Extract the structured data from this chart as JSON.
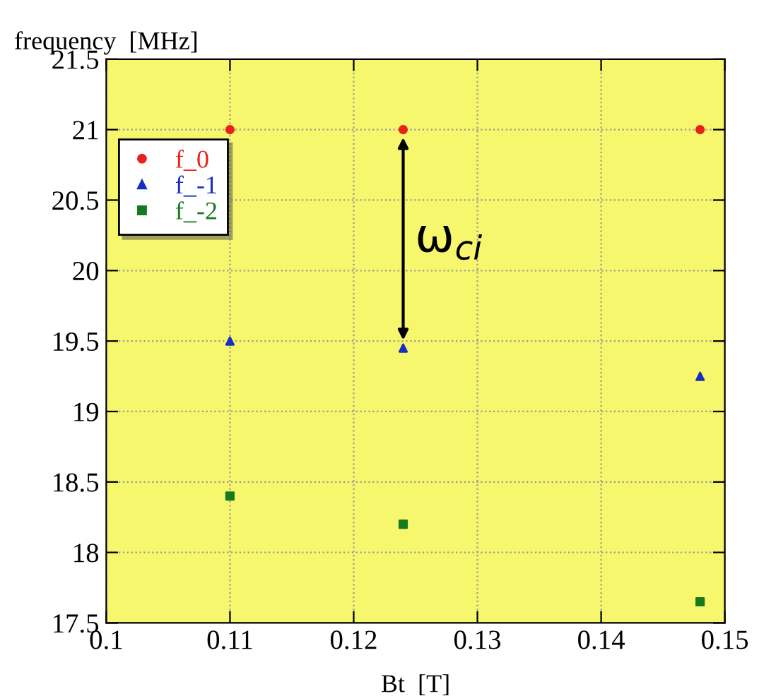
{
  "chart_data": {
    "type": "scatter",
    "xlabel": "Bt  [T]",
    "ylabel": "frequency  [MHz]",
    "xlim": [
      0.1,
      0.15
    ],
    "xticks": [
      {
        "value": 0.1,
        "label": "0.1"
      },
      {
        "value": 0.11,
        "label": "0.11"
      },
      {
        "value": 0.12,
        "label": "0.12"
      },
      {
        "value": 0.13,
        "label": "0.13"
      },
      {
        "value": 0.14,
        "label": "0.14"
      },
      {
        "value": 0.15,
        "label": "0.15"
      }
    ],
    "ylim": [
      17.5,
      21.5
    ],
    "yticks": [
      17.5,
      18,
      18.5,
      19,
      19.5,
      20,
      20.5,
      21,
      21.5
    ],
    "grid": true,
    "legend": "top left",
    "series": [
      {
        "name": "f_0",
        "color": "#e8221a",
        "marker": "circle",
        "x": [
          0.11,
          0.124,
          0.148
        ],
        "values": [
          21,
          21,
          21
        ]
      },
      {
        "name": "f_-1",
        "color": "#1a2fc0",
        "marker": "triangle",
        "x": [
          0.11,
          0.124,
          0.148
        ],
        "values": [
          19.5,
          19.45,
          19.25
        ]
      },
      {
        "name": "f_-2",
        "color": "#167a1f",
        "marker": "square",
        "x": [
          0.11,
          0.124,
          0.148
        ],
        "values": [
          18.4,
          18.2,
          17.65
        ]
      }
    ],
    "annotations": [
      "ω$_{ci}$"
    ]
  }
}
